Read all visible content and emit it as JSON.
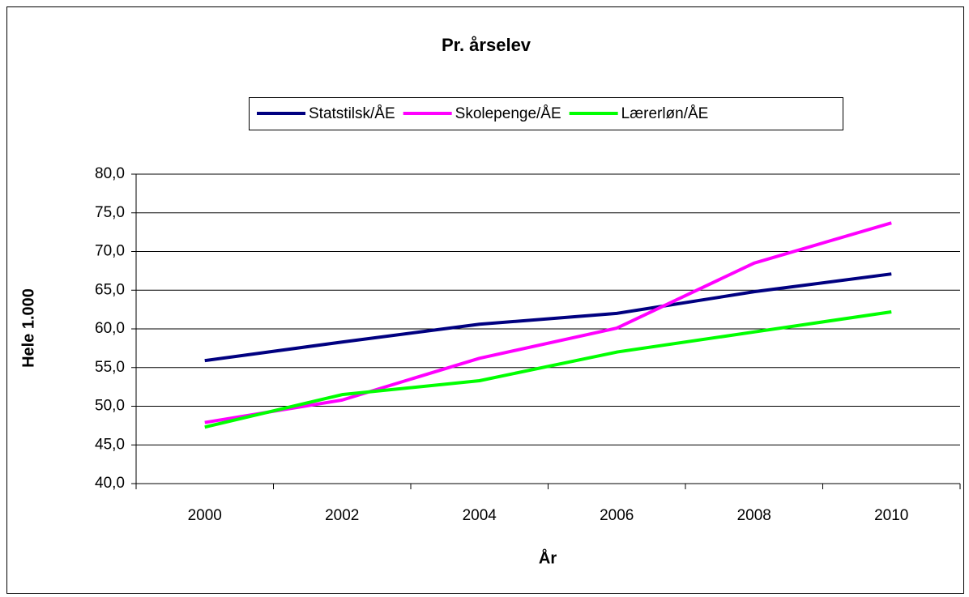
{
  "chart_data": {
    "type": "line",
    "title": "Pr. årselev",
    "x_label": "År",
    "y_label": "Hele 1.000",
    "categories": [
      "2000",
      "2002",
      "2004",
      "2006",
      "2008",
      "2010"
    ],
    "series": [
      {
        "name": "Statstilsk/ÅE",
        "color": "#000080",
        "values": [
          55.9,
          58.3,
          60.6,
          62.0,
          64.8,
          67.1
        ]
      },
      {
        "name": "Skolepenge/ÅE",
        "color": "#ff00ff",
        "values": [
          47.9,
          50.8,
          56.2,
          60.1,
          68.5,
          73.7
        ]
      },
      {
        "name": "Lærerløn/ÅE",
        "color": "#00ff00",
        "values": [
          47.3,
          51.5,
          53.3,
          57.0,
          59.6,
          62.2
        ]
      }
    ],
    "ylim": [
      40,
      80
    ],
    "yticks": [
      {
        "value": 40,
        "label": "40,0"
      },
      {
        "value": 45,
        "label": "45,0"
      },
      {
        "value": 50,
        "label": "50,0"
      },
      {
        "value": 55,
        "label": "55,0"
      },
      {
        "value": 60,
        "label": "60,0"
      },
      {
        "value": 65,
        "label": "65,0"
      },
      {
        "value": 70,
        "label": "70,0"
      },
      {
        "value": 75,
        "label": "75,0"
      },
      {
        "value": 80,
        "label": "80,0"
      }
    ],
    "grid": true,
    "legend": "top"
  }
}
